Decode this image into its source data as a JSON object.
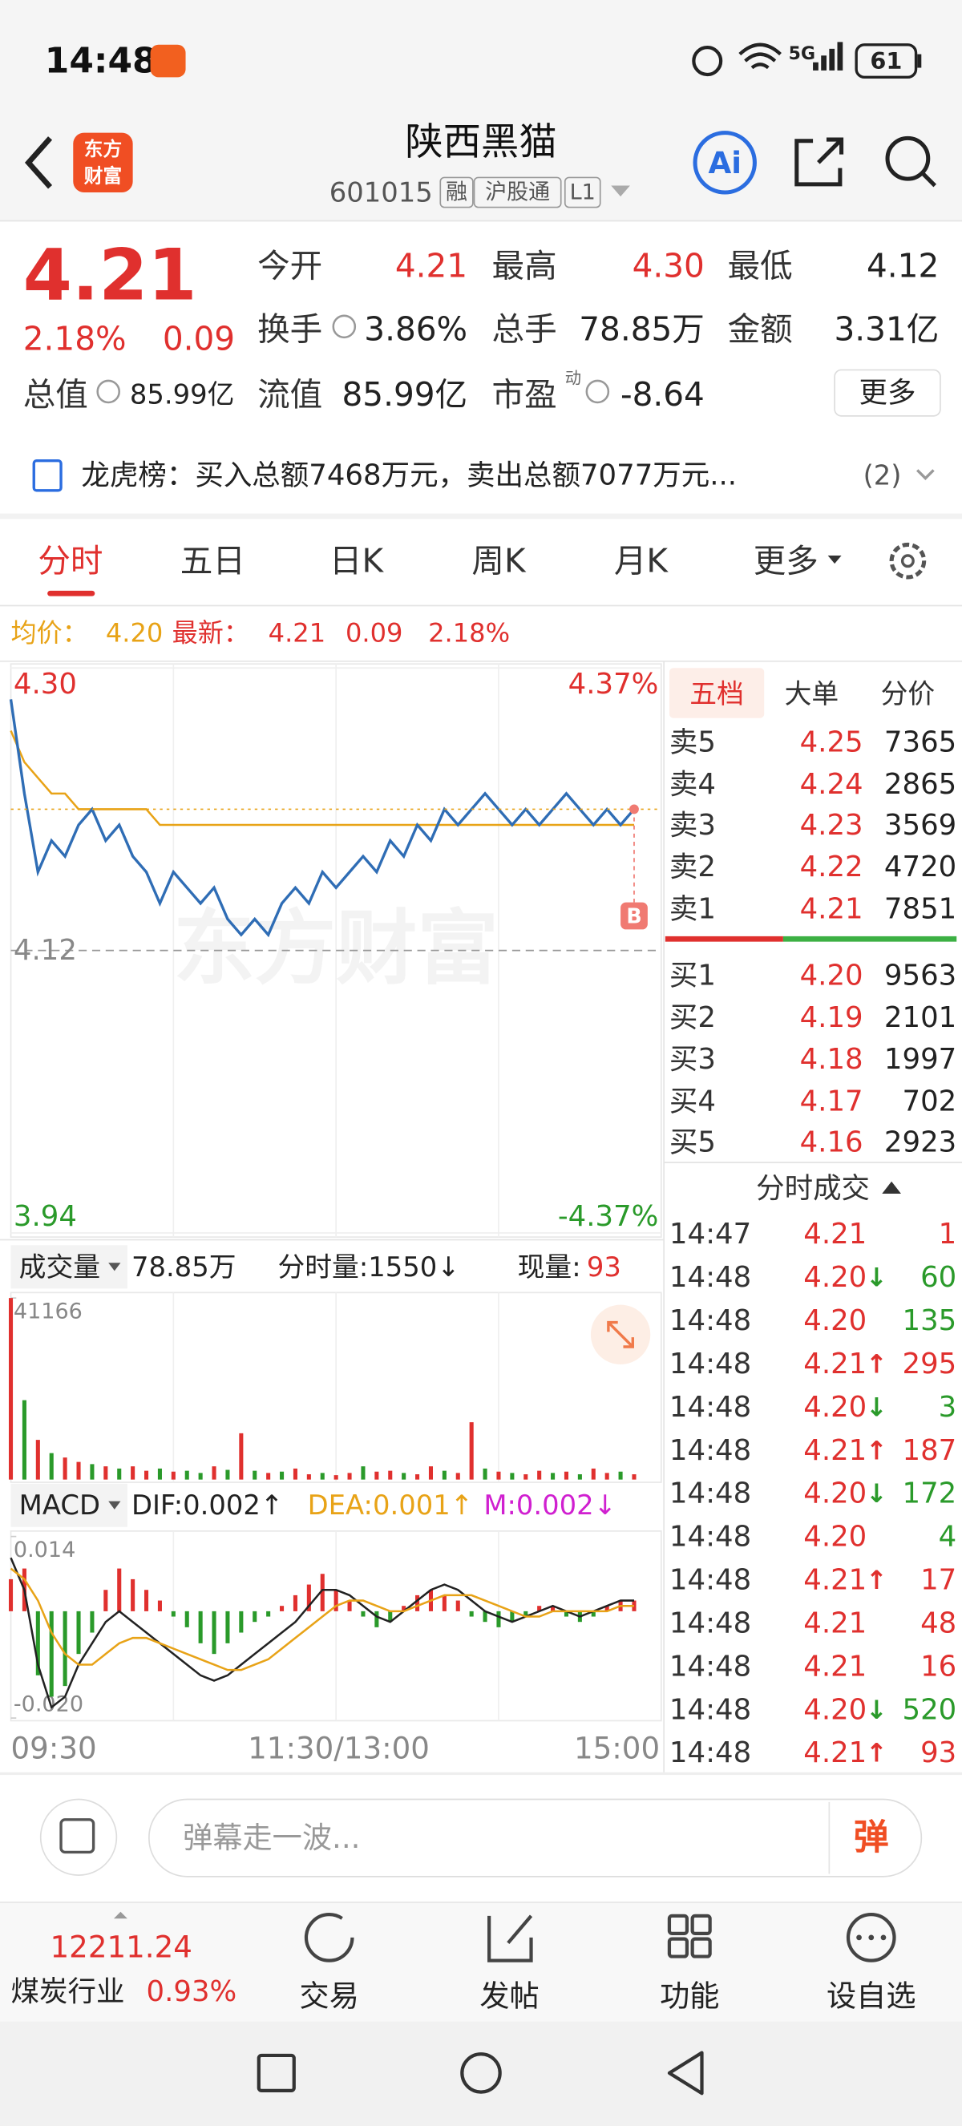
{
  "status_bar": {
    "time": "14:48",
    "network": "5G",
    "battery": "61"
  },
  "header": {
    "logo": [
      "东方",
      "财富"
    ],
    "title": "陕西黑猫",
    "code": "601015",
    "tags": [
      "融",
      "沪股通",
      "L1"
    ],
    "ai": "Ai"
  },
  "quote": {
    "price": "4.21",
    "change_pct": "2.18%",
    "change": "0.09",
    "fields": [
      {
        "label": "今开",
        "value": "4.21",
        "color": "#e0302e"
      },
      {
        "label": "最高",
        "value": "4.30",
        "color": "#e0302e"
      },
      {
        "label": "最低",
        "value": "4.12"
      },
      {
        "label": "换手",
        "value": "3.86%"
      },
      {
        "label": "总手",
        "value": "78.85万"
      },
      {
        "label": "金额",
        "value": "3.31亿"
      }
    ],
    "total_value": {
      "label": "总值",
      "value": "85.99亿"
    },
    "float_value": {
      "label": "流值",
      "value": "85.99亿"
    },
    "pe": {
      "label": "市盈",
      "sup": "动",
      "value": "-8.64"
    },
    "more": "更多"
  },
  "notice": {
    "text": "龙虎榜：买入总额7468万元，卖出总额7077万元...",
    "count": "(2)"
  },
  "tabs": [
    "分时",
    "五日",
    "日K",
    "周K",
    "月K",
    "更多"
  ],
  "summary": {
    "avg_label": "均价：",
    "avg": "4.20",
    "latest_label": "最新：",
    "latest": "4.21",
    "change": "0.09",
    "pct": "2.18%"
  },
  "chart_data": [
    {
      "type": "line",
      "watermark": "东方财富",
      "marker": "B",
      "x_labels": [
        "09:30",
        "11:30/13:00",
        "15:00"
      ],
      "ylim": [
        3.94,
        4.3
      ],
      "yticks": [
        {
          "value": 4.3,
          "label": "4.30"
        },
        {
          "value": 4.12,
          "label": "4.12"
        },
        {
          "value": 3.94,
          "label": "3.94"
        }
      ],
      "y2lim": [
        -4.37,
        4.37
      ],
      "y2ticks": [
        {
          "value": 4.37,
          "label": "4.37%"
        },
        {
          "value": -4.37,
          "label": "-4.37%"
        }
      ],
      "series": [
        {
          "color": "#2f6db5",
          "values": [
            4.28,
            4.22,
            4.17,
            4.19,
            4.18,
            4.2,
            4.21,
            4.19,
            4.2,
            4.18,
            4.17,
            4.15,
            4.17,
            4.16,
            4.15,
            4.16,
            4.14,
            4.13,
            4.14,
            4.13,
            4.15,
            4.16,
            4.15,
            4.17,
            4.16,
            4.17,
            4.18,
            4.17,
            4.19,
            4.18,
            4.2,
            4.19,
            4.21,
            4.2,
            4.21,
            4.22,
            4.21,
            4.2,
            4.21,
            4.2,
            4.21,
            4.22,
            4.21,
            4.2,
            4.21,
            4.2,
            4.21,
            null,
            null
          ]
        },
        {
          "color": "#e8a317",
          "values": [
            4.26,
            4.24,
            4.23,
            4.22,
            4.22,
            4.21,
            4.21,
            4.21,
            4.21,
            4.21,
            4.21,
            4.2,
            4.2,
            4.2,
            4.2,
            4.2,
            4.2,
            4.2,
            4.2,
            4.2,
            4.2,
            4.2,
            4.2,
            4.2,
            4.2,
            4.2,
            4.2,
            4.2,
            4.2,
            4.2,
            4.2,
            4.2,
            4.2,
            4.2,
            4.2,
            4.2,
            4.2,
            4.2,
            4.2,
            4.2,
            4.2,
            4.2,
            4.2,
            4.2,
            4.2,
            4.2,
            4.2,
            null,
            null
          ]
        }
      ]
    },
    {
      "type": "bar",
      "label": "成交量",
      "total": "78.85万",
      "period_volume": "分时量:1550↓",
      "current_label": "现量:",
      "current": "93",
      "ylim": [
        0,
        41166
      ],
      "yticks": [
        41166
      ],
      "values": [
        41166,
        18000,
        9000,
        6000,
        5000,
        4000,
        3500,
        3000,
        2500,
        3000,
        2000,
        2500,
        1800,
        2000,
        1500,
        3000,
        2200,
        10500,
        2000,
        1500,
        1800,
        2500,
        1200,
        1500,
        1000,
        1500,
        3000,
        1800,
        2000,
        1500,
        1200,
        3000,
        2000,
        1500,
        13000,
        2500,
        1800,
        1500,
        1200,
        2000,
        1500,
        1800,
        1200,
        2500,
        1500,
        1800,
        1200,
        null,
        null
      ],
      "colors": [
        "#e0302e",
        "#2a9a2a",
        "#e0302e",
        "#2a9a2a",
        "#e0302e",
        "#e0302e",
        "#2a9a2a",
        "#e0302e",
        "#2a9a2a",
        "#e0302e",
        "#e0302e",
        "#2a9a2a",
        "#e0302e",
        "#2a9a2a",
        "#2a9a2a",
        "#e0302e",
        "#2a9a2a",
        "#e0302e",
        "#2a9a2a",
        "#e0302e",
        "#2a9a2a",
        "#e0302e",
        "#e0302e",
        "#2a9a2a",
        "#e0302e",
        "#e0302e",
        "#2a9a2a",
        "#e0302e",
        "#e0302e",
        "#2a9a2a",
        "#e0302e",
        "#e0302e",
        "#2a9a2a",
        "#e0302e",
        "#e0302e",
        "#2a9a2a",
        "#e0302e",
        "#2a9a2a",
        "#e0302e",
        "#e0302e",
        "#2a9a2a",
        "#e0302e",
        "#2a9a2a",
        "#e0302e",
        "#e0302e",
        "#2a9a2a",
        "#e0302e",
        null,
        null
      ]
    },
    {
      "type": "macd",
      "label": "MACD",
      "dif_label": "DIF:0.002↑",
      "dea_label": "DEA:0.001↑",
      "m_label": "M:0.002↓",
      "ylim": [
        -0.02,
        0.014
      ],
      "yticks": [
        0.014,
        {
          "value": -0.02,
          "label": "-0.020"
        }
      ],
      "values": [
        0.006,
        0.008,
        -0.012,
        -0.016,
        -0.014,
        -0.008,
        -0.004,
        0.004,
        0.008,
        0.006,
        0.004,
        0.002,
        -0.001,
        -0.003,
        -0.006,
        -0.008,
        -0.006,
        -0.004,
        -0.002,
        -0.001,
        0.001,
        0.003,
        0.005,
        0.007,
        0.004,
        0.002,
        -0.001,
        -0.003,
        -0.002,
        0.001,
        0.003,
        0.004,
        0.003,
        0.002,
        -0.001,
        -0.002,
        -0.003,
        -0.002,
        -0.001,
        0.001,
        0.001,
        -0.001,
        -0.002,
        -0.001,
        0.001,
        0.002,
        0.002,
        null,
        null
      ],
      "series": [
        {
          "color": "#222222",
          "values": [
            0.01,
            0.004,
            -0.01,
            -0.018,
            -0.016,
            -0.01,
            -0.006,
            -0.002,
            0,
            -0.002,
            -0.004,
            -0.006,
            -0.008,
            -0.01,
            -0.012,
            -0.013,
            -0.012,
            -0.01,
            -0.008,
            -0.006,
            -0.004,
            -0.002,
            0.001,
            0.004,
            0.004,
            0.003,
            0.001,
            -0.001,
            -0.002,
            0,
            0.002,
            0.004,
            0.005,
            0.004,
            0.002,
            0,
            -0.001,
            -0.002,
            -0.001,
            0,
            0.001,
            0,
            -0.001,
            0,
            0.001,
            0.002,
            0.002,
            null,
            null
          ]
        },
        {
          "color": "#e8a317",
          "values": [
            0.008,
            0.006,
            0.002,
            -0.004,
            -0.008,
            -0.01,
            -0.01,
            -0.008,
            -0.006,
            -0.005,
            -0.005,
            -0.006,
            -0.007,
            -0.008,
            -0.009,
            -0.01,
            -0.011,
            -0.011,
            -0.01,
            -0.009,
            -0.007,
            -0.005,
            -0.003,
            -0.001,
            0.001,
            0.002,
            0.002,
            0.001,
            0,
            0,
            0.001,
            0.002,
            0.003,
            0.003,
            0.003,
            0.002,
            0.001,
            0,
            -0.001,
            -0.001,
            0,
            0,
            0,
            0,
            0,
            0.001,
            0.001,
            null,
            null
          ]
        }
      ]
    }
  ],
  "orderbook": {
    "tabs": [
      "五档",
      "大单",
      "分价"
    ],
    "sell": [
      {
        "label": "卖5",
        "price": "4.25",
        "volume": "7365"
      },
      {
        "label": "卖4",
        "price": "4.24",
        "volume": "2865"
      },
      {
        "label": "卖3",
        "price": "4.23",
        "volume": "3569"
      },
      {
        "label": "卖2",
        "price": "4.22",
        "volume": "4720"
      },
      {
        "label": "卖1",
        "price": "4.21",
        "volume": "7851"
      }
    ],
    "buy": [
      {
        "label": "买1",
        "price": "4.20",
        "volume": "9563"
      },
      {
        "label": "买2",
        "price": "4.19",
        "volume": "2101"
      },
      {
        "label": "买3",
        "price": "4.18",
        "volume": "1997"
      },
      {
        "label": "买4",
        "price": "4.17",
        "volume": "702"
      },
      {
        "label": "买5",
        "price": "4.16",
        "volume": "2923"
      }
    ]
  },
  "trades": {
    "title": "分时成交",
    "rows": [
      {
        "time": "14:47",
        "price": "4.21",
        "volume": "1",
        "color": "#e0302e"
      },
      {
        "time": "14:48",
        "price": "4.20",
        "arrow": "↓",
        "volume": "60",
        "color": "#2a9a2a"
      },
      {
        "time": "14:48",
        "price": "4.20",
        "volume": "135",
        "color": "#2a9a2a"
      },
      {
        "time": "14:48",
        "price": "4.21",
        "arrow": "↑",
        "volume": "295",
        "color": "#e0302e"
      },
      {
        "time": "14:48",
        "price": "4.20",
        "arrow": "↓",
        "volume": "3",
        "color": "#2a9a2a"
      },
      {
        "time": "14:48",
        "price": "4.21",
        "arrow": "↑",
        "volume": "187",
        "color": "#e0302e"
      },
      {
        "time": "14:48",
        "price": "4.20",
        "arrow": "↓",
        "volume": "172",
        "color": "#2a9a2a"
      },
      {
        "time": "14:48",
        "price": "4.20",
        "volume": "4",
        "color": "#2a9a2a"
      },
      {
        "time": "14:48",
        "price": "4.21",
        "arrow": "↑",
        "volume": "17",
        "color": "#e0302e"
      },
      {
        "time": "14:48",
        "price": "4.21",
        "volume": "48",
        "color": "#e0302e"
      },
      {
        "time": "14:48",
        "price": "4.21",
        "volume": "16",
        "color": "#e0302e"
      },
      {
        "time": "14:48",
        "price": "4.20",
        "arrow": "↓",
        "volume": "520",
        "color": "#2a9a2a"
      },
      {
        "time": "14:48",
        "price": "4.21",
        "arrow": "↑",
        "volume": "93",
        "color": "#e0302e"
      }
    ]
  },
  "comment": {
    "placeholder": "弹幕走一波...",
    "button": "弹"
  },
  "bottom": {
    "index_value": "12211.24",
    "sector": "煤炭行业",
    "sector_pct": "0.93%",
    "nav": [
      "交易",
      "发帖",
      "功能",
      "设自选"
    ]
  }
}
